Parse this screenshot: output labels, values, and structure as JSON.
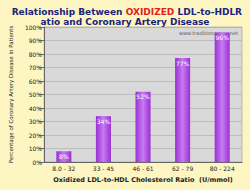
{
  "chart_data": {
    "type": "bar",
    "title": "Relationship Between OXIDIZED LDL-to-HDL Ratio and Coronary Artery Disease",
    "x_label": "Oxidized LDL-to-HDL Cholesterol Ratio  (U/mmol)",
    "y_label": "Percentage of Coronary Artery Disease in Patients",
    "annotations": [
      "www.traditioncense.net"
    ],
    "categories": [
      "8.0 - 32",
      "33 - 45",
      "46 - 61",
      "62 - 79",
      "80 - 224"
    ],
    "values": [
      8,
      34,
      52,
      77,
      96
    ],
    "value_labels": [
      "8%",
      "34%",
      "52%",
      "77%",
      "96%"
    ],
    "color": "#9a2fd6",
    "ylim": [
      0,
      100
    ],
    "yticks": [
      {
        "value": 0,
        "label": "0%"
      },
      {
        "value": 10,
        "label": "10%"
      },
      {
        "value": 20,
        "label": "20%"
      },
      {
        "value": 30,
        "label": "30%"
      },
      {
        "value": 40,
        "label": "40%"
      },
      {
        "value": 50,
        "label": "50%"
      },
      {
        "value": 60,
        "label": "60%"
      },
      {
        "value": 70,
        "label": "70%"
      },
      {
        "value": 80,
        "label": "80%"
      },
      {
        "value": 90,
        "label": "90%"
      },
      {
        "value": 100,
        "label": "100%"
      }
    ],
    "grid": true,
    "data_labels": true
  }
}
